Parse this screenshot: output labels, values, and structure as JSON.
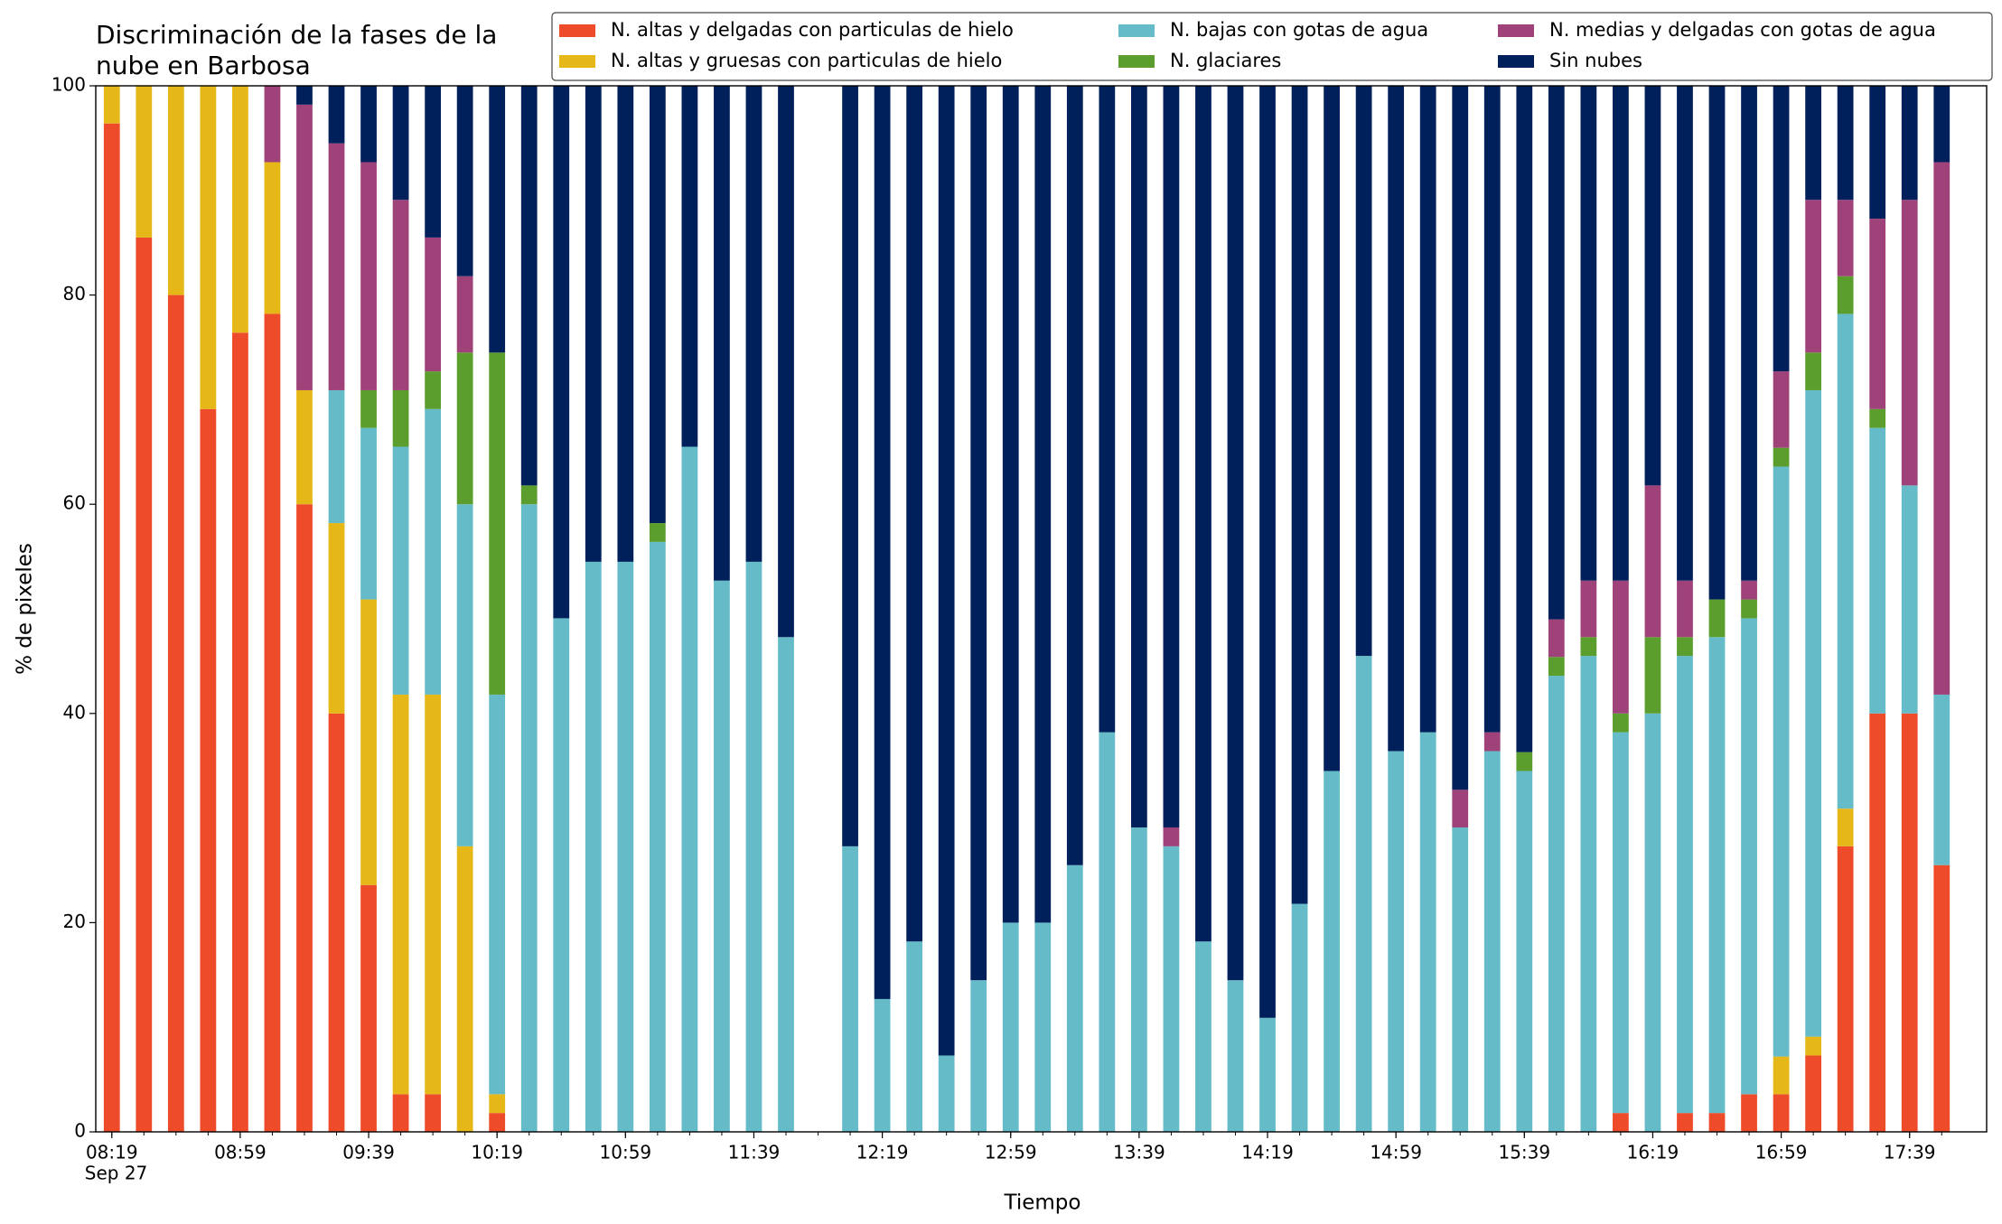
{
  "chart_data": {
    "type": "stacked_bar",
    "title": "Discriminación de la fases de la nube en Barbosa",
    "xlabel": "Tiempo",
    "ylabel": "% de pixeles",
    "x": [
      "08:19",
      "08:29",
      "08:39",
      "08:49",
      "08:59",
      "09:09",
      "09:19",
      "09:29",
      "09:39",
      "09:49",
      "09:59",
      "10:09",
      "10:19",
      "10:29",
      "10:39",
      "10:49",
      "10:59",
      "11:09",
      "11:19",
      "11:29",
      "11:39",
      "11:49",
      "11:59",
      "12:09",
      "12:19",
      "12:29",
      "12:39",
      "12:49",
      "12:59",
      "13:09",
      "13:19",
      "13:29",
      "13:39",
      "13:49",
      "13:59",
      "14:09",
      "14:19",
      "14:29",
      "14:39",
      "14:49",
      "14:59",
      "15:09",
      "15:19",
      "15:29",
      "15:39",
      "15:49",
      "15:59",
      "16:09",
      "16:19",
      "16:29",
      "16:39",
      "16:49",
      "16:59",
      "17:09",
      "17:19",
      "17:29",
      "17:39",
      "17:49"
    ],
    "x_date_label": "Sep 27",
    "xlim": [
      "08:14",
      "18:03"
    ],
    "xticks": [
      "08:19",
      "08:59",
      "09:39",
      "10:19",
      "10:59",
      "11:39",
      "12:19",
      "12:59",
      "13:39",
      "14:19",
      "14:59",
      "15:39",
      "16:19",
      "16:59",
      "17:39"
    ],
    "ylim": [
      0,
      100
    ],
    "yticks": [
      0,
      20,
      40,
      60,
      80,
      100
    ],
    "grid": false,
    "series": [
      {
        "name": "N. altas y delgadas con particulas de hielo",
        "color": "#ee4b2b",
        "values": [
          96.4,
          85.5,
          80,
          69.1,
          76.4,
          78.2,
          60,
          40,
          23.6,
          3.6,
          3.6,
          0,
          1.8,
          0,
          0,
          0,
          0,
          0,
          0,
          0,
          0,
          0,
          null,
          0,
          0,
          0,
          0,
          0,
          0,
          0,
          0,
          0,
          0,
          0,
          0,
          0,
          0,
          0,
          0,
          0,
          0,
          0,
          0,
          0,
          0,
          0,
          0,
          1.8,
          0,
          1.8,
          1.8,
          3.6,
          3.6,
          7.3,
          27.3,
          40,
          40,
          25.5
        ]
      },
      {
        "name": "N. altas y gruesas con particulas de hielo",
        "color": "#e6b817",
        "values": [
          3.6,
          14.5,
          20,
          30.9,
          23.6,
          14.5,
          10.9,
          18.2,
          27.3,
          38.2,
          38.2,
          27.3,
          1.8,
          0,
          0,
          0,
          0,
          0,
          0,
          0,
          0,
          0,
          null,
          0,
          0,
          0,
          0,
          0,
          0,
          0,
          0,
          0,
          0,
          0,
          0,
          0,
          0,
          0,
          0,
          0,
          0,
          0,
          0,
          0,
          0,
          0,
          0,
          0,
          0,
          0,
          0,
          0,
          3.6,
          1.8,
          3.6,
          0,
          0,
          0
        ]
      },
      {
        "name": "N. bajas con gotas de agua",
        "color": "#65bcc8",
        "values": [
          0,
          0,
          0,
          0,
          0,
          0,
          0,
          12.7,
          16.4,
          23.7,
          27.3,
          32.7,
          38.2,
          60,
          49.1,
          54.5,
          54.5,
          56.4,
          65.5,
          52.7,
          54.5,
          47.3,
          null,
          27.3,
          12.7,
          18.2,
          7.3,
          14.5,
          20,
          20,
          25.5,
          38.2,
          29.1,
          27.3,
          18.2,
          14.5,
          10.9,
          21.8,
          34.5,
          45.5,
          36.4,
          38.2,
          29.1,
          36.4,
          34.5,
          43.6,
          45.5,
          36.4,
          40,
          43.7,
          45.5,
          45.5,
          56.4,
          61.8,
          47.3,
          27.3,
          21.8,
          16.3
        ]
      },
      {
        "name": "N. glaciares",
        "color": "#5c9e2e",
        "values": [
          0,
          0,
          0,
          0,
          0,
          0,
          0,
          0,
          3.6,
          5.4,
          3.6,
          14.5,
          32.7,
          1.8,
          0,
          0,
          0,
          1.8,
          0,
          0,
          0,
          0,
          null,
          0,
          0,
          0,
          0,
          0,
          0,
          0,
          0,
          0,
          0,
          0,
          0,
          0,
          0,
          0,
          0,
          0,
          0,
          0,
          0,
          0,
          1.8,
          1.8,
          1.8,
          1.8,
          7.3,
          1.8,
          3.6,
          1.8,
          1.8,
          3.6,
          3.6,
          1.8,
          0,
          0
        ]
      },
      {
        "name": "N. medias y delgadas con gotas de agua",
        "color": "#a0427a",
        "values": [
          0,
          0,
          0,
          0,
          0,
          7.3,
          27.3,
          23.6,
          21.8,
          18.2,
          12.8,
          7.3,
          0,
          0,
          0,
          0,
          0,
          0,
          0,
          0,
          0,
          0,
          null,
          0,
          0,
          0,
          0,
          0,
          0,
          0,
          0,
          0,
          0,
          1.8,
          0,
          0,
          0,
          0,
          0,
          0,
          0,
          0,
          3.6,
          1.8,
          0,
          3.6,
          5.4,
          12.7,
          14.5,
          5.4,
          0,
          1.8,
          7.3,
          14.6,
          7.3,
          18.2,
          27.3,
          50.9
        ]
      },
      {
        "name": "Sin nubes",
        "color": "#00205b",
        "values": [
          0,
          0,
          0,
          0,
          0,
          0,
          1.8,
          5.5,
          7.3,
          10.9,
          14.5,
          18.2,
          25.5,
          38.2,
          50.9,
          45.5,
          45.5,
          41.8,
          34.5,
          47.3,
          45.5,
          52.7,
          null,
          72.7,
          87.3,
          81.8,
          92.7,
          85.5,
          80,
          80,
          74.5,
          61.8,
          70.9,
          70.9,
          81.8,
          85.5,
          89.1,
          78.2,
          65.5,
          54.5,
          63.6,
          61.8,
          67.3,
          61.8,
          63.7,
          51,
          47.3,
          47.3,
          38.2,
          47.3,
          49.1,
          47.3,
          27.3,
          10.9,
          10.9,
          12.7,
          10.9,
          7.3
        ]
      }
    ]
  }
}
